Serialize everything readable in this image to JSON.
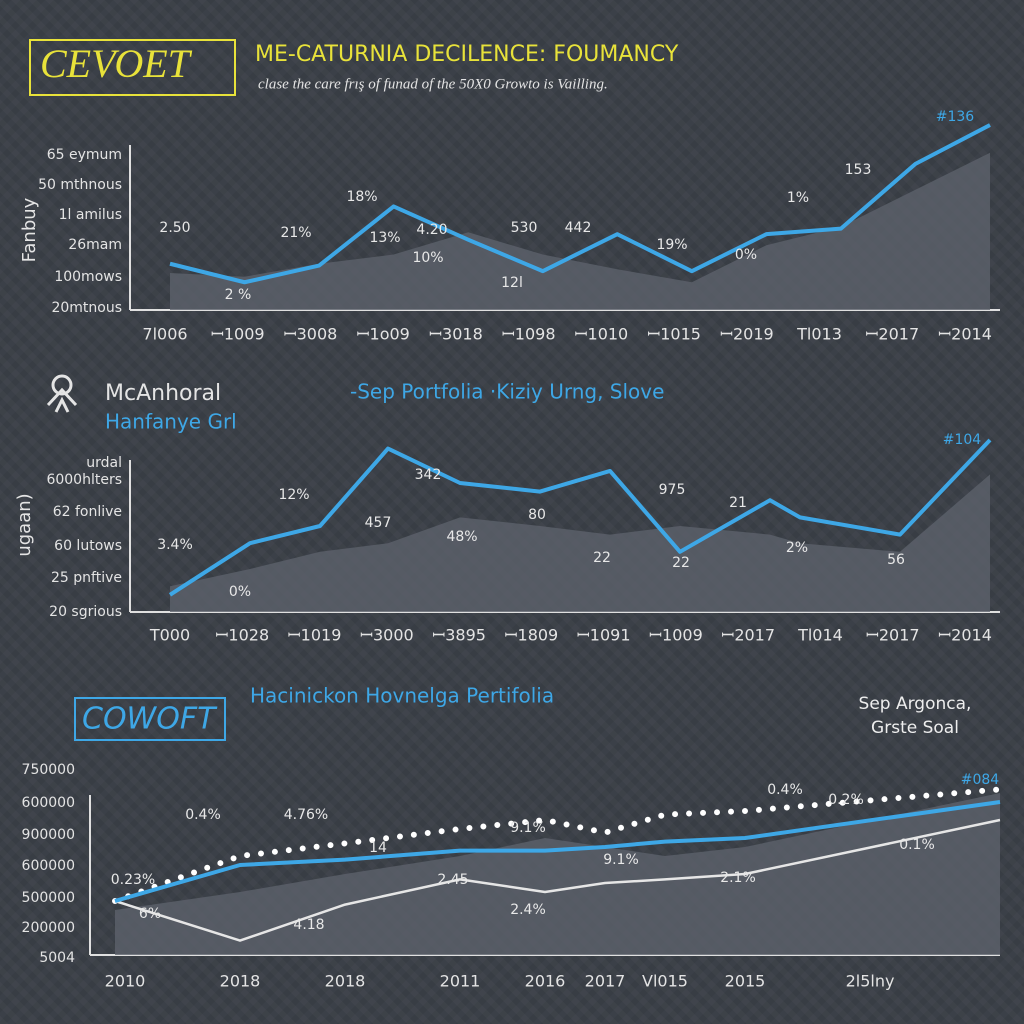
{
  "chart_data": [
    {
      "type": "line",
      "badge": "CEVOET",
      "title": "ME-CATURNIA DECILENCE: FOUMANCY",
      "subtitle": "clase the care frış of funad of the 50X0 Growto is Vailling.",
      "ylabel": "Fanbuy",
      "y_labels": [
        "65 eymum",
        "50 mthnous",
        "1l amilus",
        "26mam",
        "100mows",
        "20mtnous"
      ],
      "categories": [
        "7l006",
        "ꟷ1009",
        "ꟷ3008",
        "ꟷ1o09",
        "ꟷ3018",
        "ꟷ1098",
        "ꟷ1010",
        "ꟷ1015",
        "ꟷ2019",
        "Tl013",
        "ꟷ2017",
        "ꟷ2014"
      ],
      "ylim": [
        0,
        100
      ],
      "series": [
        {
          "style": "area",
          "color": "#5c626b",
          "values": [
            20,
            18,
            25,
            30,
            42,
            30,
            22,
            15,
            35,
            45,
            65,
            85
          ]
        },
        {
          "style": "line",
          "color": "#3ea7e6",
          "values": [
            25,
            15,
            24,
            56,
            38,
            21,
            41,
            21,
            41,
            44,
            79,
            100
          ]
        }
      ],
      "annotations": [
        "2.50",
        "2 %",
        "21%",
        "18%",
        "13%",
        "4.20",
        "10%",
        "530",
        "442",
        "12l",
        "19%",
        "0%",
        "1%",
        "153",
        "#136"
      ]
    },
    {
      "type": "line",
      "badge": "McAnhoral",
      "title": "-Sep Portfolia ·Kiziy Urng, Slove",
      "subtitle": "Hanfanye Grl",
      "ylabel": "ugaan)",
      "y_labels": [
        "urdal",
        "6000hlters",
        "62 fonlive",
        "60 lutows",
        "25 pnftive",
        "20 sgrious"
      ],
      "categories": [
        "T000",
        "ꟷ1028",
        "ꟷ1019",
        "ꟷ3000",
        "ꟷ3895",
        "ꟷ1809",
        "ꟷ1091",
        "ꟷ1009",
        "ꟷ2017",
        "Tl014",
        "ꟷ2017",
        "ꟷ2014"
      ],
      "ylim": [
        0,
        100
      ],
      "series": [
        {
          "style": "area",
          "color": "#5c626b",
          "values": [
            15,
            25,
            35,
            40,
            55,
            50,
            45,
            50,
            45,
            40,
            35,
            80
          ]
        },
        {
          "style": "line",
          "color": "#3ea7e6",
          "values": [
            10,
            40,
            50,
            95,
            75,
            70,
            82,
            35,
            65,
            55,
            45,
            100
          ]
        }
      ],
      "annotations": [
        "3.4%",
        "12%",
        "0%",
        "342",
        "457",
        "48%",
        "80",
        "975",
        "21",
        "22",
        "22",
        "2%",
        "56",
        "#104"
      ]
    },
    {
      "type": "line",
      "badge": "COWOFT",
      "title": "Hacinickon Hovnelga Pertifolia",
      "subtitle": "Sep Argonca, Grste Soal",
      "y_labels": [
        "750000",
        "600000",
        "900000",
        "600000",
        "500000",
        "200000",
        "5004"
      ],
      "categories": [
        "2010",
        "2018",
        "2018",
        "2011",
        "2016",
        "2017",
        "Vl015",
        "2015",
        "2l5lny"
      ],
      "ylim": [
        0,
        100
      ],
      "series": [
        {
          "style": "area",
          "color": "#5c626b",
          "values": [
            25,
            35,
            45,
            55,
            65,
            60,
            55,
            60,
            90
          ]
        },
        {
          "style": "dotted",
          "color": "#ffffff",
          "values": [
            30,
            55,
            62,
            70,
            75,
            68,
            78,
            80,
            92
          ]
        },
        {
          "style": "solid",
          "color": "#e6e6e6",
          "values": [
            30,
            8,
            28,
            42,
            35,
            40,
            42,
            45,
            75
          ]
        },
        {
          "style": "line",
          "color": "#3ea7e6",
          "values": [
            30,
            50,
            53,
            58,
            58,
            60,
            63,
            65,
            85
          ]
        }
      ],
      "annotations": [
        "0.23%",
        "6%",
        "0.4%",
        "4.76%",
        "14",
        "2.45",
        "4.18",
        "2.4%",
        "9.1%",
        "9.1%",
        "0.4%",
        "2.1%",
        "0.2%",
        "0.1%",
        "#084"
      ]
    }
  ]
}
